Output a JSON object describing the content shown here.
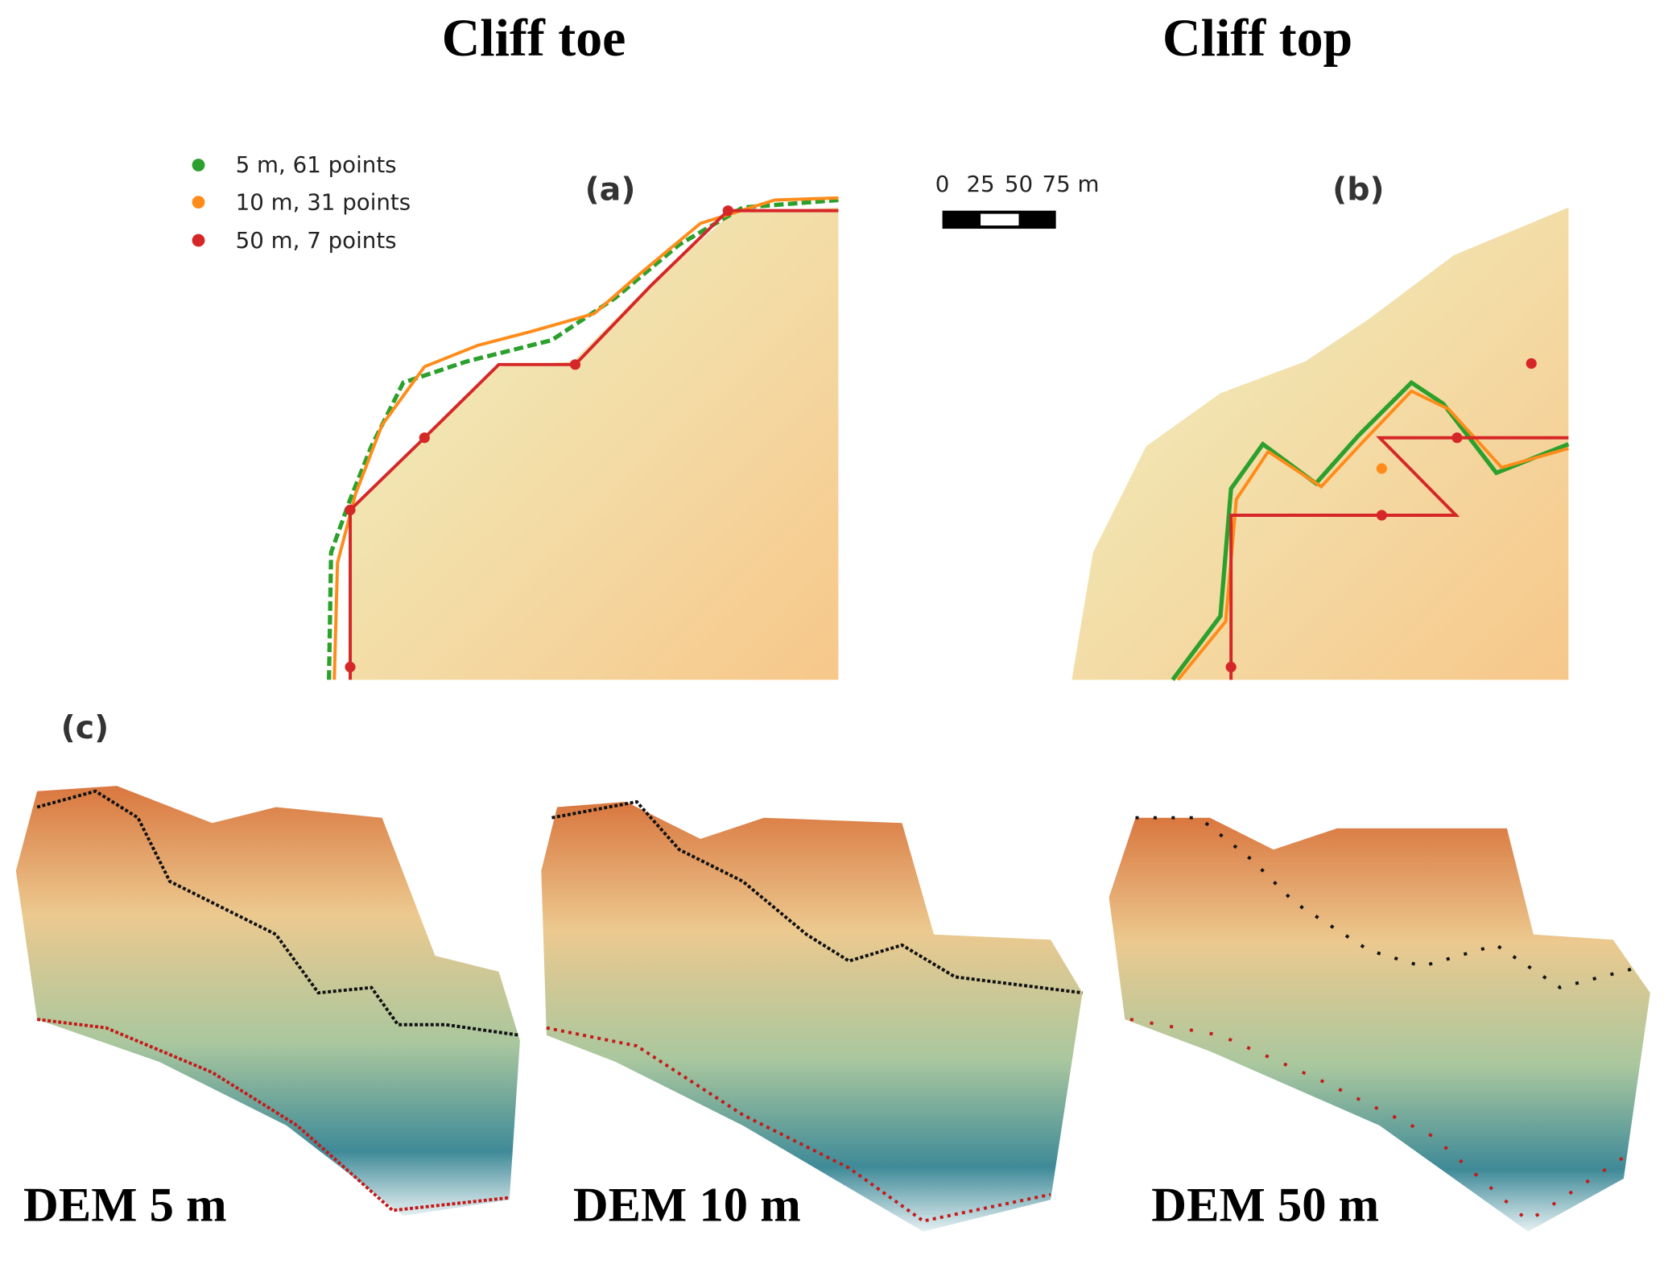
{
  "columns": [
    {
      "title": "Cliff toe"
    },
    {
      "title": "Cliff top"
    }
  ],
  "legend": [
    "5 m, 61 points",
    "10 m, 31 points",
    "50 m, 7 points"
  ],
  "panels": {
    "a": "(a)",
    "b": "(b)",
    "c": "(c)"
  },
  "scale_bar": [
    "0",
    "25",
    "50",
    "75 m"
  ],
  "dem_labels": [
    "DEM 5  m",
    "DEM 10 m",
    "DEM 50  m"
  ]
}
